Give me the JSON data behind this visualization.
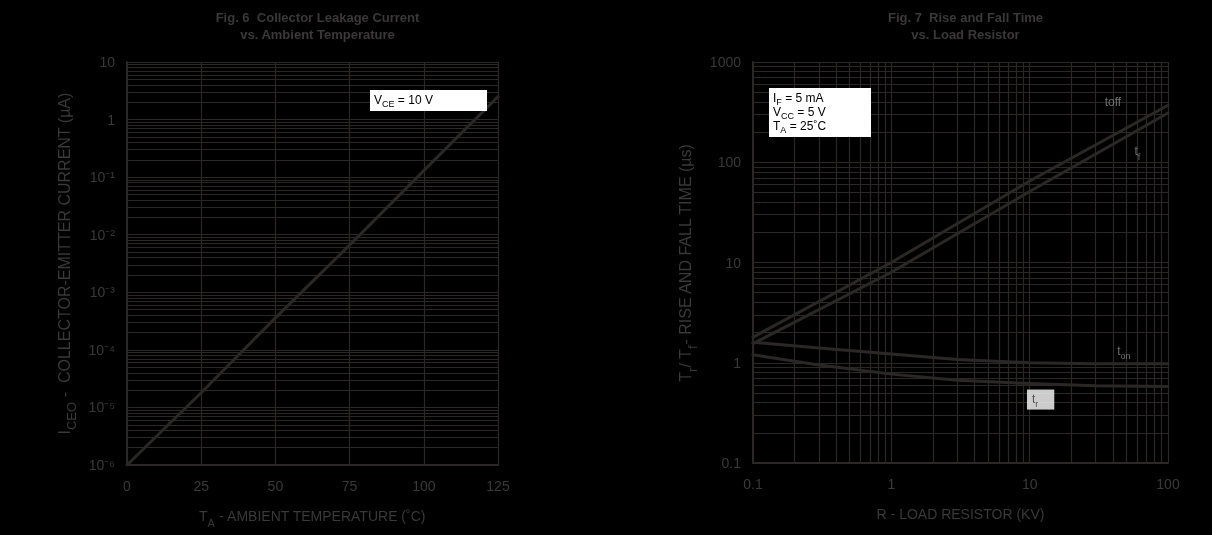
{
  "chart_data": [
    {
      "type": "line",
      "title": "Fig. 6  Collector Leakage Current\nvs. Ambient Temperature",
      "xlabel": "T$_{A}$ - AMBIENT TEMPERATURE (˚C)",
      "ylabel": "I$_{CEO}$ -  COLLECTOR-EMITTER CURRENT (µA)",
      "x": [
        0,
        25,
        50,
        75,
        100,
        125
      ],
      "series": [
        {
          "color": "#2b2727",
          "values": [
            1e-06,
            1.8e-05,
            0.00036,
            0.0066,
            0.13,
            2.5
          ]
        }
      ],
      "xlim": [
        0,
        125
      ],
      "xticks": [
        0,
        25,
        50,
        75,
        100,
        125
      ],
      "ylim": [
        1e-06,
        10
      ],
      "yticks": [
        {
          "value": 1e-06,
          "label": "10⁻⁶"
        },
        {
          "value": 1e-05,
          "label": "10⁻⁵"
        },
        {
          "value": 0.0001,
          "label": "10⁻⁴"
        },
        {
          "value": 0.001,
          "label": "10⁻³"
        },
        {
          "value": 0.01,
          "label": "10⁻²"
        },
        {
          "value": 0.1,
          "label": "10⁻¹"
        },
        1,
        10
      ],
      "log": true,
      "grid": true,
      "legend": false,
      "marker": "none",
      "annotations": [
        "V$_{CE}$ = 10 V"
      ]
    },
    {
      "type": "line",
      "title": "Fig. 7  Rise and Fall Time\nvs. Load Resistor",
      "xlabel": "R - LOAD RESISTOR (KV)",
      "ylabel": "T$_{r}$/ T$_{f}$- RISE AND FALL TIME (µs)",
      "x": [
        0.1,
        1,
        10,
        100
      ],
      "series": [
        {
          "name": "toff",
          "color": "#2b2727",
          "values": [
            1.8,
            10,
            65,
            370
          ]
        },
        {
          "name": "t$_{f}$",
          "color": "#2b2727",
          "values": [
            1.55,
            8,
            51,
            310
          ]
        },
        {
          "name": "t$_{on}$",
          "color": "#2b2727",
          "x": [
            0.1,
            0.3,
            1,
            3,
            10,
            30,
            100
          ],
          "values": [
            1.6,
            1.4,
            1.22,
            1.08,
            1.0,
            0.98,
            0.98
          ]
        },
        {
          "name": "t$_{r}$",
          "color": "#2b2727",
          "x": [
            0.1,
            0.3,
            1,
            3,
            10,
            30,
            100
          ],
          "values": [
            1.2,
            0.95,
            0.77,
            0.67,
            0.62,
            0.59,
            0.58
          ]
        }
      ],
      "xlim": [
        0.1,
        100
      ],
      "xticks": [
        0.1,
        1,
        10,
        100
      ],
      "ylim": [
        0.1,
        1000
      ],
      "yticks": [
        0.1,
        1,
        10,
        100,
        1000
      ],
      "log": "xy",
      "grid": true,
      "legend": false,
      "marker": "none",
      "annotations": [
        "I$_{F}$ = 5 mA\nV$_{CC}$ = 5 V\nT$_{A}$ = 25˚C"
      ]
    }
  ]
}
